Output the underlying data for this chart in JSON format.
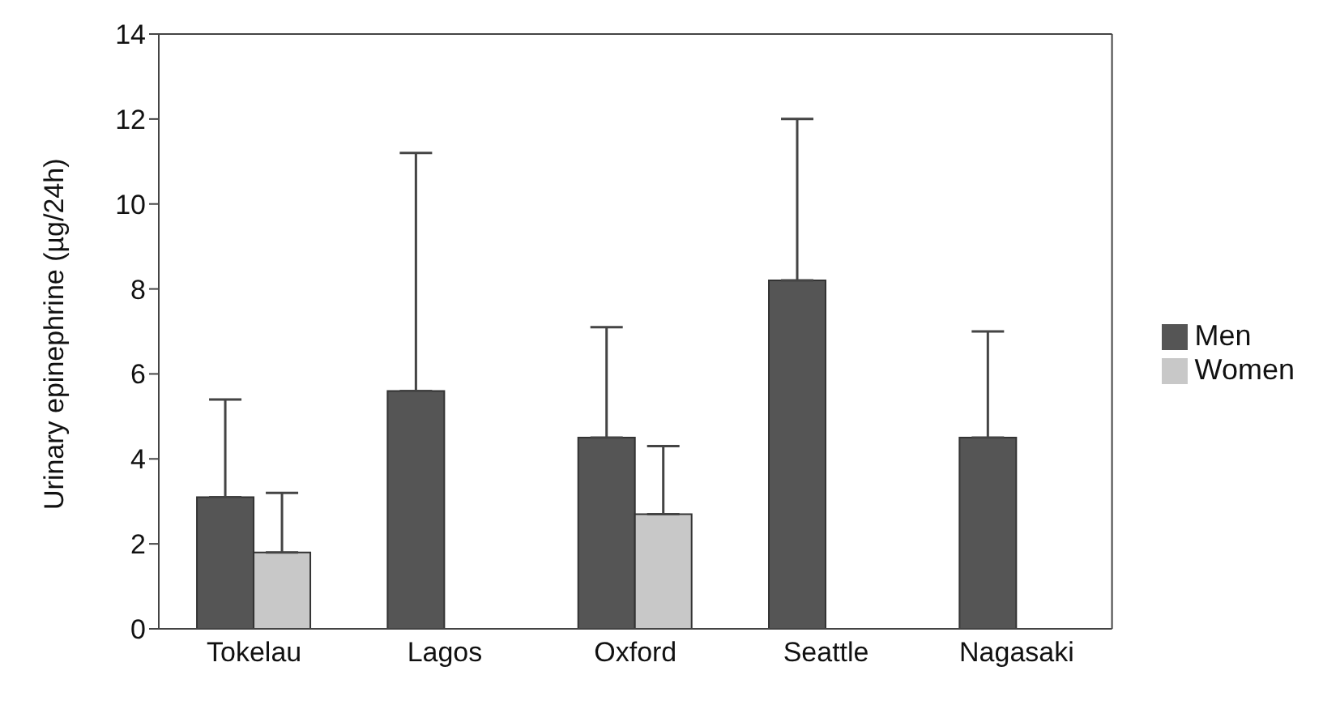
{
  "chart_data": {
    "type": "bar",
    "ylabel": "Urinary epinephrine (µg/24h)",
    "categories": [
      "Tokelau",
      "Lagos",
      "Oxford",
      "Seattle",
      "Nagasaki"
    ],
    "series": [
      {
        "name": "Men",
        "color": "#555555",
        "values": [
          3.1,
          5.6,
          4.5,
          8.2,
          4.5
        ],
        "errors": [
          [
            3.1,
            5.4
          ],
          [
            5.6,
            11.2
          ],
          [
            4.5,
            7.1
          ],
          [
            8.2,
            12.0
          ],
          [
            4.5,
            7.0
          ]
        ]
      },
      {
        "name": "Women",
        "color": "#c8c8c8",
        "values": [
          1.8,
          null,
          2.7,
          null,
          null
        ],
        "errors": [
          [
            1.8,
            3.2
          ],
          null,
          [
            2.7,
            4.3
          ],
          null,
          null
        ]
      }
    ],
    "ylim": [
      0,
      14
    ],
    "yticks": [
      0,
      2,
      4,
      6,
      8,
      10,
      12,
      14
    ],
    "grid": false,
    "legend": "right"
  }
}
